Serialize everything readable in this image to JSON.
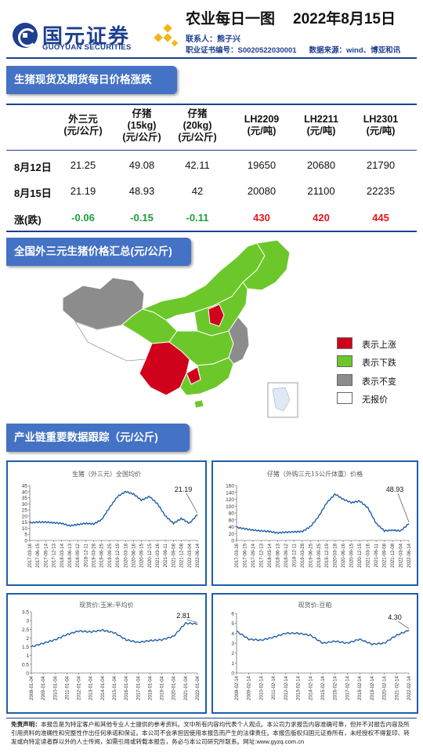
{
  "header": {
    "logo_cn": "国元证券",
    "logo_en": "GUOYUAN SECURITIES",
    "title": "农业每日一图",
    "date": "2022年8月15日",
    "contact": "联系人：熊子兴",
    "cert": "职业证书编号：S0020522030001",
    "source": "数据来源：wind、博亚和讯"
  },
  "section1": {
    "title": "生猪现货及期货每日价格涨跌"
  },
  "table": {
    "columns": [
      [
        "外三元",
        "(元/公斤)"
      ],
      [
        "仔猪",
        "(15kg)",
        "(元/公斤)"
      ],
      [
        "仔猪",
        "(20kg)",
        "(元/公斤)"
      ],
      [
        "LH2209",
        "(元/吨)"
      ],
      [
        "LH2211",
        "(元/吨)"
      ],
      [
        "LH2301",
        "(元/吨)"
      ]
    ],
    "rows": [
      {
        "label": "8月12日",
        "values": [
          "21.25",
          "49.08",
          "42.11",
          "19650",
          "20680",
          "21790"
        ]
      },
      {
        "label": "8月15日",
        "values": [
          "21.19",
          "48.93",
          "42",
          "20080",
          "21100",
          "22235"
        ]
      },
      {
        "label": "涨(跌)",
        "values": [
          "-0.06",
          "-0.15",
          "-0.11",
          "430",
          "420",
          "445"
        ]
      }
    ],
    "change_colors": [
      "green",
      "green",
      "green",
      "red",
      "red",
      "red"
    ]
  },
  "section2": {
    "title": "全国外三元生猪价格汇总(元/公斤)"
  },
  "map_legend": {
    "items": [
      {
        "label": "表示上涨",
        "color": "#d0021b"
      },
      {
        "label": "表示下跌",
        "color": "#6cc82a"
      },
      {
        "label": "表示不变",
        "color": "#8c8c8c"
      },
      {
        "label": "无报价",
        "color": "#ffffff"
      }
    ]
  },
  "colors": {
    "up": "#d0021b",
    "down": "#6cc82a",
    "flat": "#8c8c8c",
    "accent": "#1d3f8f",
    "banner": "#4472c4",
    "line": "#1f5fa8"
  },
  "section3": {
    "title": "产业链重要数据跟踪（元/公斤)"
  },
  "chart_data": [
    {
      "type": "line",
      "title": "生猪（外三元）全国均价",
      "ylim": [
        0,
        45
      ],
      "yticks": [
        0,
        5,
        10,
        15,
        20,
        25,
        30,
        35,
        40,
        45
      ],
      "x": [
        "2017-03-16",
        "2017-06-15",
        "2017-09-14",
        "2017-12-13",
        "2018-03-14",
        "2018-06-13",
        "2018-09-12",
        "2018-12-11",
        "2019-03-28",
        "2019-06-25",
        "2019-09-25",
        "2019-12-19",
        "2020-03-18",
        "2020-06-16",
        "2020-09-15",
        "2020-12-15",
        "2021-03-16",
        "2021-06-11",
        "2021-09-08",
        "2021-12-08",
        "2022-03-04",
        "2022-06-14"
      ],
      "series": [
        {
          "values": [
            14.5,
            15,
            15,
            14.5,
            14,
            12,
            13,
            14,
            13.5,
            17,
            27,
            36,
            40,
            38,
            33,
            36,
            30,
            20,
            14,
            18,
            14,
            21.19
          ]
        }
      ],
      "annotation": "21.19"
    },
    {
      "type": "line",
      "title": "仔猪（外购三元15公斤体重）价格",
      "ylim": [
        0,
        160
      ],
      "yticks": [
        0,
        20,
        40,
        60,
        80,
        100,
        120,
        140,
        160
      ],
      "x": [
        "2017-03-16",
        "2017-06-15",
        "2017-09-14",
        "2017-12-13",
        "2018-03-14",
        "2018-06-13",
        "2018-09-12",
        "2018-12-11",
        "2019-03-28",
        "2019-06-25",
        "2019-09-25",
        "2019-12-19",
        "2020-03-18",
        "2020-06-16",
        "2020-09-15",
        "2020-12-15",
        "2021-03-16",
        "2021-06-11",
        "2021-09-08",
        "2021-12-08",
        "2022-03-04",
        "2022-06-14"
      ],
      "series": [
        {
          "values": [
            38,
            34,
            30,
            28,
            26,
            22,
            24,
            25,
            26,
            40,
            70,
            110,
            135,
            120,
            110,
            115,
            95,
            50,
            28,
            30,
            28,
            48.93
          ]
        }
      ],
      "annotation": "48.93"
    },
    {
      "type": "line",
      "title": "现货价:玉米:平均价",
      "ylim": [
        0,
        3.5
      ],
      "yticks": [
        0,
        0.5,
        1,
        1.5,
        2,
        2.5,
        3,
        3.5
      ],
      "x": [
        "2008-01-04",
        "2009-01-04",
        "2010-01-04",
        "2011-01-04",
        "2012-01-04",
        "2013-01-04",
        "2014-01-04",
        "2015-01-04",
        "2016-01-04",
        "2017-01-04",
        "2018-01-04",
        "2019-01-04",
        "2020-01-04",
        "2021-01-04",
        "2022-01-04"
      ],
      "series": [
        {
          "values": [
            1.5,
            1.7,
            1.9,
            2.2,
            2.4,
            2.35,
            2.45,
            2.3,
            1.9,
            1.75,
            1.85,
            1.9,
            2.1,
            2.85,
            2.81
          ]
        }
      ],
      "annotation": "2.81"
    },
    {
      "type": "line",
      "title": "现货价:豆粕",
      "ylim": [
        0,
        6
      ],
      "yticks": [
        0,
        1,
        2,
        3,
        4,
        5,
        6
      ],
      "x": [
        "2008-02-14",
        "2009-02-14",
        "2010-02-14",
        "2011-02-14",
        "2012-02-14",
        "2013-02-14",
        "2014-02-14",
        "2015-02-14",
        "2016-02-14",
        "2017-02-14",
        "2018-02-14",
        "2019-02-14",
        "2020-02-14",
        "2021-02-14",
        "2022-02-14"
      ],
      "series": [
        {
          "values": [
            4.2,
            3.4,
            3.3,
            3.6,
            4.0,
            4.0,
            3.8,
            3.0,
            3.2,
            3.0,
            3.4,
            2.9,
            3.0,
            3.8,
            4.3
          ]
        }
      ],
      "annotation": "4.30"
    }
  ],
  "footer": {
    "label": "免责声明：",
    "text": "本报告是为特定客户和其他专业人士提供的参考资料。文中所有内容均代表个人观点。本公司力求报告内容准确可靠，但并不对报告内容及所引用资料的准确性和完整性作出任何承诺和保证。本公司不会承担因使用本报告而产生的法律责任。本报告版权归国元证券所有，未经授权不得复印、转发或向特定读者群以外的人士传阅，如需引用或转载本报告，务必与本公司研究所联系。网址:www.gyzq.com.cn"
  }
}
